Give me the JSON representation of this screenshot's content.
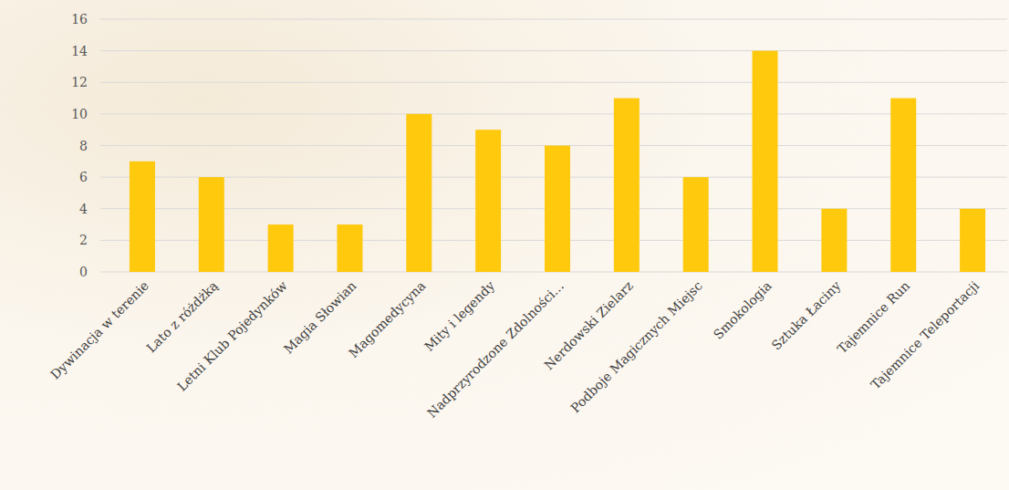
{
  "chart_data": {
    "type": "bar",
    "categories": [
      "Dywinacja w terenie",
      "Lato z różdżką",
      "Letni Klub Pojedynków",
      "Magia Słowian",
      "Magomedycyna",
      "Mity i legendy",
      "Nadprzyrodzone Zdolności…",
      "Nerdowski Zielarz",
      "Podboje Magicznych Miejsc",
      "Smokologia",
      "Sztuka Łaciny",
      "Tajemnice Run",
      "Tajemnice Teleportacji"
    ],
    "values": [
      7,
      6,
      3,
      3,
      10,
      9,
      8,
      11,
      6,
      14,
      4,
      11,
      4
    ],
    "color": "#ffc90e",
    "ylim": [
      0,
      16
    ],
    "yticks": [
      0,
      2,
      4,
      6,
      8,
      10,
      12,
      14,
      16
    ],
    "grid": true
  }
}
